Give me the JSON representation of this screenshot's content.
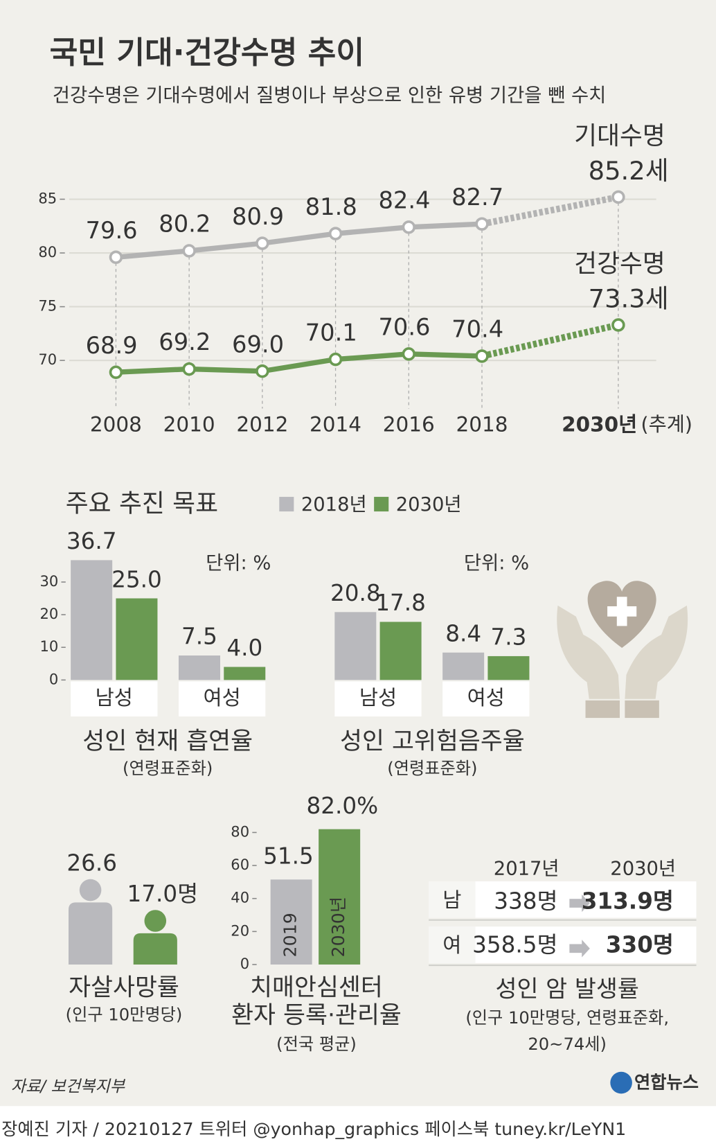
{
  "header": {
    "title": "국민 기대·건강수명 추이",
    "subtitle": "건강수명은 기대수명에서 질병이나 부상으로 인한 유병 기간을 뺀 수치"
  },
  "chart_data": [
    {
      "type": "line",
      "categories": [
        "2008",
        "2010",
        "2012",
        "2014",
        "2016",
        "2018",
        "2030년"
      ],
      "category_note": "(추계)",
      "ylim": [
        67,
        87
      ],
      "yticks": [
        70,
        75,
        80,
        85
      ],
      "grid": true,
      "series": [
        {
          "name": "기대수명",
          "color": "#b3b3b3",
          "values": [
            79.6,
            80.2,
            80.9,
            81.8,
            82.4,
            82.7,
            85.2
          ],
          "value_labels": [
            "79.6",
            "80.2",
            "80.9",
            "81.8",
            "82.4",
            "82.7",
            "85.2세"
          ]
        },
        {
          "name": "건강수명",
          "color": "#6a9a52",
          "values": [
            68.9,
            69.2,
            69.0,
            70.1,
            70.6,
            70.4,
            73.3
          ],
          "value_labels": [
            "68.9",
            "69.2",
            "69.0",
            "70.1",
            "70.6",
            "70.4",
            "73.3세"
          ]
        }
      ]
    },
    {
      "type": "bar",
      "section_title": "주요 추진 목표",
      "unit": "단위: %",
      "title": "성인 현재 흡연율",
      "note": "(연령표준화)",
      "categories": [
        "남성",
        "여성"
      ],
      "ylim": [
        0,
        40
      ],
      "yticks": [
        0,
        10,
        20,
        30
      ],
      "series": [
        {
          "name": "2018년",
          "color": "#b9b9bd",
          "values": [
            36.7,
            7.5
          ],
          "value_labels": [
            "36.7",
            "7.5"
          ]
        },
        {
          "name": "2030년",
          "color": "#6a9a52",
          "values": [
            25.0,
            4.0
          ],
          "value_labels": [
            "25.0",
            "4.0"
          ]
        }
      ]
    },
    {
      "type": "bar",
      "unit": "단위: %",
      "title": "성인 고위험음주율",
      "note": "(연령표준화)",
      "categories": [
        "남성",
        "여성"
      ],
      "ylim": [
        0,
        40
      ],
      "series": [
        {
          "color": "#b9b9bd",
          "values": [
            20.8,
            8.4
          ],
          "value_labels": [
            "20.8",
            "8.4"
          ]
        },
        {
          "color": "#6a9a52",
          "values": [
            17.8,
            7.3
          ],
          "value_labels": [
            "17.8",
            "7.3"
          ]
        }
      ]
    },
    {
      "type": "pictogram",
      "title": "자살사망률",
      "note": "(인구 10만명당)",
      "ylim": [
        0,
        30
      ],
      "values": [
        26.6,
        17.0
      ],
      "value_labels": [
        "26.6",
        "17.0명"
      ],
      "colors": [
        "#b9b9bd",
        "#6a9a52"
      ]
    },
    {
      "type": "column",
      "title": [
        "치매안심센터",
        "환자 등록·관리율"
      ],
      "note": "(전국 평균)",
      "categories": [
        "2019",
        "2030년"
      ],
      "values": [
        51.5,
        82.0
      ],
      "value_labels": [
        "51.5",
        "82.0%"
      ],
      "colors": [
        "#b9b9bd",
        "#6a9a52"
      ],
      "ylim": [
        0,
        82
      ],
      "yticks": [
        0,
        20,
        40,
        60,
        80
      ]
    }
  ],
  "cancer_table": {
    "columns": [
      "2017년",
      "2030년"
    ],
    "rows": [
      [
        "남",
        "338명",
        "313.9명"
      ],
      [
        "여",
        "358.5명",
        "330명"
      ]
    ],
    "title": "성인 암 발생률",
    "note": [
      "(인구 10만명당, 연령표준화,",
      "20~74세)"
    ]
  },
  "footer": {
    "source": "자료/ 보건복지부",
    "logo": "연합뉴스",
    "credit": "장예진 기자 / 20210127 트위터 @yonhap_graphics  페이스북 tuney.kr/LeYN1"
  }
}
